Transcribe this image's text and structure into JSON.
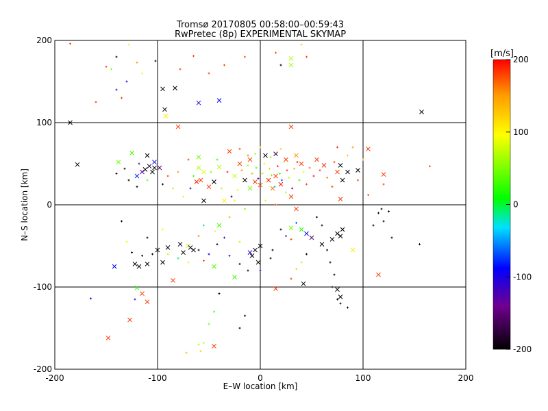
{
  "chart_data": {
    "type": "scatter",
    "title": "Tromsø 20170805 00:58:00–00:59:43",
    "subtitle": "RwPretec (8p) EXPERIMENTAL SKYMAP",
    "xlabel": "E–W location [km]",
    "ylabel": "N–S location [km]",
    "xlim": [
      -200,
      200
    ],
    "ylim": [
      -200,
      200
    ],
    "xticks": [
      -200,
      -100,
      0,
      100,
      200
    ],
    "yticks": [
      -200,
      -100,
      0,
      100,
      200
    ],
    "grid": true,
    "colorbar": {
      "label": "[m/s]",
      "range": [
        -200,
        200
      ],
      "ticks": [
        200,
        100,
        0,
        -100,
        -200
      ],
      "colormap": "black-purple-blue-cyan-green-yellow-red"
    },
    "series": [
      {
        "marker": "x",
        "points": [
          [
            -178,
            49,
            -200
          ],
          [
            -103,
            52,
            -110
          ],
          [
            -108,
            47,
            -180
          ],
          [
            -112,
            43,
            -200
          ],
          [
            -115,
            40,
            -150
          ],
          [
            -105,
            40,
            -200
          ],
          [
            -98,
            45,
            -170
          ],
          [
            -120,
            35,
            -90
          ],
          [
            -125,
            63,
            20
          ],
          [
            -138,
            52,
            40
          ],
          [
            -122,
            -72,
            -200
          ],
          [
            -118,
            -75,
            -200
          ],
          [
            -110,
            -72,
            -200
          ],
          [
            -100,
            -55,
            -200
          ],
          [
            -90,
            -52,
            -200
          ],
          [
            -95,
            -70,
            -200
          ],
          [
            -70,
            -50,
            60
          ],
          [
            -68,
            -52,
            -180
          ],
          [
            -75,
            -58,
            -200
          ],
          [
            -78,
            -48,
            -190
          ],
          [
            -65,
            -55,
            -200
          ],
          [
            -142,
            -75,
            -100
          ],
          [
            -120,
            -101,
            10
          ],
          [
            -115,
            -108,
            180
          ],
          [
            -110,
            -118,
            180
          ],
          [
            -127,
            -140,
            180
          ],
          [
            -148,
            -162,
            180
          ],
          [
            -85,
            -92,
            180
          ],
          [
            -45,
            -172,
            180
          ],
          [
            -95,
            141,
            -200
          ],
          [
            -83,
            142,
            -200
          ],
          [
            -93,
            116,
            -200
          ],
          [
            -92,
            108,
            100
          ],
          [
            -80,
            95,
            180
          ],
          [
            -40,
            127,
            -100
          ],
          [
            -60,
            124,
            -120
          ],
          [
            -185,
            100,
            -200
          ],
          [
            -60,
            58,
            40
          ],
          [
            -55,
            40,
            80
          ],
          [
            -58,
            30,
            180
          ],
          [
            -62,
            28,
            190
          ],
          [
            -50,
            22,
            180
          ],
          [
            -45,
            28,
            -200
          ],
          [
            -55,
            5,
            -200
          ],
          [
            -60,
            45,
            60
          ],
          [
            -40,
            46,
            60
          ],
          [
            -30,
            65,
            180
          ],
          [
            -20,
            50,
            180
          ],
          [
            -10,
            55,
            180
          ],
          [
            -25,
            35,
            70
          ],
          [
            -15,
            30,
            -200
          ],
          [
            -5,
            28,
            180
          ],
          [
            0,
            24,
            180
          ],
          [
            8,
            30,
            190
          ],
          [
            15,
            35,
            180
          ],
          [
            20,
            25,
            190
          ],
          [
            12,
            20,
            160
          ],
          [
            -10,
            20,
            40
          ],
          [
            5,
            60,
            -200
          ],
          [
            15,
            62,
            -180
          ],
          [
            25,
            55,
            180
          ],
          [
            35,
            60,
            150
          ],
          [
            40,
            50,
            180
          ],
          [
            55,
            55,
            180
          ],
          [
            62,
            48,
            190
          ],
          [
            75,
            40,
            180
          ],
          [
            78,
            48,
            -200
          ],
          [
            85,
            40,
            -200
          ],
          [
            95,
            42,
            -200
          ],
          [
            80,
            30,
            -200
          ],
          [
            78,
            7,
            180
          ],
          [
            30,
            10,
            180
          ],
          [
            35,
            -5,
            180
          ],
          [
            30,
            178,
            60
          ],
          [
            30,
            170,
            60
          ],
          [
            30,
            95,
            180
          ],
          [
            105,
            68,
            180
          ],
          [
            120,
            37,
            180
          ],
          [
            157,
            113,
            -200
          ],
          [
            -35,
            5,
            100
          ],
          [
            -40,
            -25,
            20
          ],
          [
            -45,
            -75,
            30
          ],
          [
            -25,
            -88,
            20
          ],
          [
            -10,
            -58,
            -120
          ],
          [
            -5,
            -55,
            -190
          ],
          [
            -8,
            -62,
            -200
          ],
          [
            0,
            -50,
            -200
          ],
          [
            -2,
            -70,
            -200
          ],
          [
            15,
            -102,
            180
          ],
          [
            42,
            -96,
            -200
          ],
          [
            30,
            -28,
            40
          ],
          [
            40,
            -30,
            10
          ],
          [
            45,
            -35,
            -100
          ],
          [
            50,
            -40,
            -170
          ],
          [
            60,
            -48,
            -200
          ],
          [
            70,
            -42,
            -200
          ],
          [
            75,
            -35,
            -200
          ],
          [
            80,
            -30,
            -200
          ],
          [
            78,
            -38,
            -200
          ],
          [
            90,
            -55,
            100
          ],
          [
            75,
            -103,
            -200
          ],
          [
            78,
            -112,
            -200
          ],
          [
            115,
            -85,
            180
          ],
          [
            -110,
            60,
            -200
          ],
          [
            -103,
            45,
            -200
          ]
        ]
      },
      {
        "marker": "+",
        "points": [
          [
            -185,
            196,
            180
          ],
          [
            -150,
            168,
            180
          ],
          [
            -140,
            140,
            -150
          ],
          [
            -135,
            130,
            180
          ],
          [
            -160,
            125,
            180
          ],
          [
            -120,
            173,
            150
          ],
          [
            -115,
            160,
            80
          ],
          [
            -128,
            195,
            80
          ],
          [
            -102,
            175,
            -200
          ],
          [
            -78,
            165,
            180
          ],
          [
            -65,
            181,
            180
          ],
          [
            -50,
            160,
            180
          ],
          [
            -35,
            170,
            180
          ],
          [
            -15,
            180,
            180
          ],
          [
            15,
            185,
            180
          ],
          [
            40,
            195,
            120
          ],
          [
            45,
            180,
            180
          ],
          [
            -145,
            165,
            50
          ],
          [
            -130,
            150,
            -120
          ],
          [
            -140,
            180,
            -200
          ],
          [
            -120,
            22,
            -200
          ],
          [
            -128,
            30,
            -200
          ],
          [
            -132,
            44,
            -200
          ],
          [
            -140,
            38,
            -200
          ],
          [
            -118,
            50,
            -150
          ],
          [
            -110,
            30,
            40
          ],
          [
            -95,
            25,
            -200
          ],
          [
            -90,
            35,
            180
          ],
          [
            -85,
            20,
            60
          ],
          [
            -80,
            40,
            150
          ],
          [
            -75,
            10,
            100
          ],
          [
            -70,
            55,
            180
          ],
          [
            -65,
            35,
            20
          ],
          [
            -68,
            20,
            -100
          ],
          [
            -48,
            40,
            40
          ],
          [
            -42,
            55,
            20
          ],
          [
            -38,
            20,
            60
          ],
          [
            -32,
            40,
            190
          ],
          [
            -28,
            10,
            -200
          ],
          [
            -22,
            18,
            100
          ],
          [
            -18,
            42,
            150
          ],
          [
            -12,
            48,
            60
          ],
          [
            -8,
            38,
            140
          ],
          [
            -4,
            45,
            20
          ],
          [
            -2,
            32,
            -140
          ],
          [
            2,
            38,
            60
          ],
          [
            4,
            50,
            80
          ],
          [
            6,
            28,
            100
          ],
          [
            9,
            44,
            120
          ],
          [
            11,
            36,
            40
          ],
          [
            14,
            22,
            -50
          ],
          [
            17,
            47,
            190
          ],
          [
            19,
            38,
            20
          ],
          [
            21,
            30,
            -80
          ],
          [
            23,
            52,
            100
          ],
          [
            26,
            42,
            180
          ],
          [
            28,
            33,
            60
          ],
          [
            31,
            20,
            -160
          ],
          [
            33,
            44,
            140
          ],
          [
            36,
            52,
            190
          ],
          [
            38,
            30,
            20
          ],
          [
            42,
            40,
            80
          ],
          [
            45,
            25,
            180
          ],
          [
            48,
            45,
            160
          ],
          [
            52,
            35,
            190
          ],
          [
            58,
            42,
            180
          ],
          [
            65,
            33,
            160
          ],
          [
            70,
            22,
            180
          ],
          [
            72,
            52,
            180
          ],
          [
            85,
            60,
            120
          ],
          [
            90,
            70,
            150
          ],
          [
            75,
            70,
            190
          ],
          [
            95,
            30,
            180
          ],
          [
            100,
            55,
            120
          ],
          [
            105,
            12,
            180
          ],
          [
            120,
            25,
            180
          ],
          [
            165,
            47,
            180
          ],
          [
            -5,
            62,
            60
          ],
          [
            0,
            70,
            120
          ],
          [
            10,
            58,
            40
          ],
          [
            -12,
            60,
            160
          ],
          [
            -20,
            68,
            180
          ],
          [
            20,
            68,
            120
          ],
          [
            -25,
            5,
            80
          ],
          [
            -15,
            -5,
            40
          ],
          [
            5,
            5,
            100
          ],
          [
            15,
            0,
            180
          ],
          [
            25,
            15,
            60
          ],
          [
            -30,
            -15,
            140
          ],
          [
            -55,
            -25,
            -20
          ],
          [
            -60,
            -38,
            160
          ],
          [
            -44,
            -32,
            80
          ],
          [
            -35,
            -40,
            -150
          ],
          [
            -20,
            -45,
            60
          ],
          [
            -30,
            -62,
            -120
          ],
          [
            -20,
            -72,
            -200
          ],
          [
            -12,
            -80,
            -200
          ],
          [
            0,
            -80,
            -120
          ],
          [
            10,
            -65,
            -200
          ],
          [
            12,
            -55,
            -200
          ],
          [
            -105,
            -60,
            -200
          ],
          [
            -115,
            -62,
            -200
          ],
          [
            -125,
            -58,
            -200
          ],
          [
            -90,
            -60,
            60
          ],
          [
            -80,
            -65,
            -20
          ],
          [
            -70,
            -70,
            100
          ],
          [
            -60,
            -55,
            -200
          ],
          [
            -55,
            -68,
            180
          ],
          [
            -50,
            -60,
            -100
          ],
          [
            -42,
            -48,
            -200
          ],
          [
            -130,
            -45,
            80
          ],
          [
            -135,
            -20,
            -200
          ],
          [
            -110,
            -40,
            -200
          ],
          [
            -95,
            -30,
            80
          ],
          [
            -122,
            -115,
            -120
          ],
          [
            -165,
            -114,
            -120
          ],
          [
            -40,
            -108,
            -200
          ],
          [
            -45,
            -130,
            20
          ],
          [
            -50,
            -145,
            40
          ],
          [
            -55,
            -168,
            60
          ],
          [
            -60,
            -170,
            60
          ],
          [
            -72,
            -180,
            130
          ],
          [
            -58,
            -178,
            120
          ],
          [
            -20,
            -150,
            -200
          ],
          [
            -15,
            -135,
            -200
          ],
          [
            20,
            -30,
            -200
          ],
          [
            25,
            -38,
            -150
          ],
          [
            30,
            -42,
            180
          ],
          [
            35,
            -22,
            -80
          ],
          [
            55,
            -15,
            -200
          ],
          [
            60,
            -25,
            -200
          ],
          [
            65,
            -55,
            -200
          ],
          [
            68,
            -70,
            -200
          ],
          [
            72,
            -85,
            -200
          ],
          [
            40,
            -70,
            60
          ],
          [
            35,
            -78,
            120
          ],
          [
            30,
            -90,
            180
          ],
          [
            45,
            -60,
            -200
          ],
          [
            75,
            -115,
            -200
          ],
          [
            78,
            -120,
            -200
          ],
          [
            85,
            -125,
            -200
          ],
          [
            115,
            -10,
            -200
          ],
          [
            120,
            -20,
            -200
          ],
          [
            118,
            -5,
            -200
          ],
          [
            125,
            -8,
            -200
          ],
          [
            155,
            -48,
            -200
          ],
          [
            110,
            -25,
            -200
          ],
          [
            70,
            -100,
            -200
          ],
          [
            128,
            -40,
            -200
          ],
          [
            20,
            170,
            -200
          ]
        ]
      }
    ]
  }
}
